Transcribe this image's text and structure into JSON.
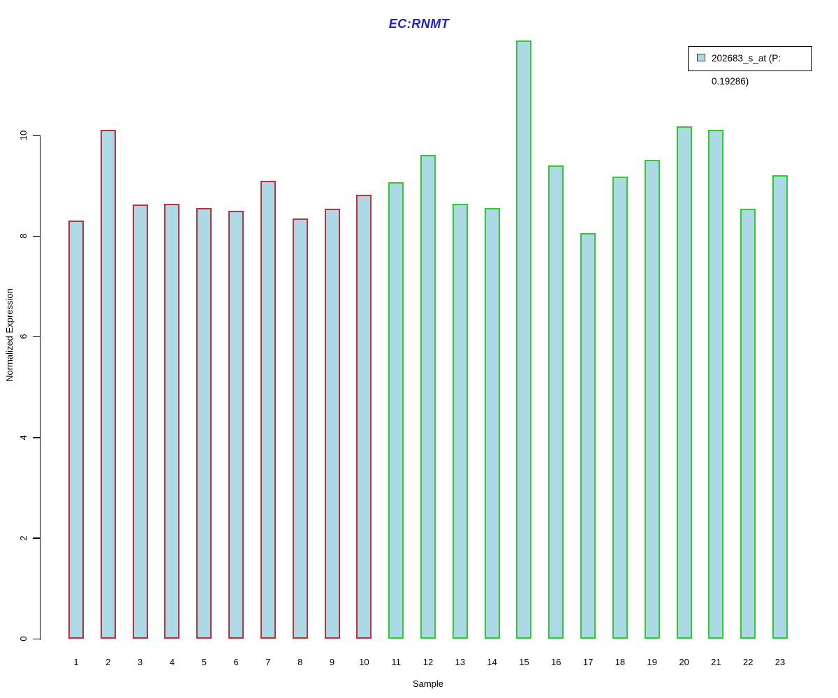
{
  "title": "EC:RNMT",
  "colors": {
    "title_blue": "#2121C8",
    "bar_fill": "#ADD8E6",
    "border_red": "#C0303A",
    "border_green": "#2FCC2F",
    "axis_black": "#000000",
    "legend_swatch_border": "#444444"
  },
  "legend": {
    "label": "202683_s_at (P: 0.19286)"
  },
  "axes": {
    "xlabel": "Sample",
    "ylabel": "Normalized Expression"
  },
  "chart_data": {
    "type": "bar",
    "title": "EC:RNMT",
    "xlabel": "Sample",
    "ylabel": "Normalized Expression",
    "categories": [
      "1",
      "2",
      "3",
      "4",
      "5",
      "6",
      "7",
      "8",
      "9",
      "10",
      "11",
      "12",
      "13",
      "14",
      "15",
      "16",
      "17",
      "18",
      "19",
      "20",
      "21",
      "22",
      "23"
    ],
    "values": [
      8.31,
      10.11,
      8.63,
      8.64,
      8.56,
      8.5,
      9.1,
      8.35,
      8.54,
      8.82,
      9.07,
      9.61,
      8.64,
      8.56,
      11.88,
      9.4,
      8.06,
      9.18,
      9.51,
      10.18,
      10.11,
      8.54,
      9.21
    ],
    "bar_border_colors": [
      "#C0303A",
      "#C0303A",
      "#C0303A",
      "#C0303A",
      "#C0303A",
      "#C0303A",
      "#C0303A",
      "#C0303A",
      "#C0303A",
      "#C0303A",
      "#2FCC2F",
      "#2FCC2F",
      "#2FCC2F",
      "#2FCC2F",
      "#2FCC2F",
      "#2FCC2F",
      "#2FCC2F",
      "#2FCC2F",
      "#2FCC2F",
      "#2FCC2F",
      "#2FCC2F",
      "#2FCC2F",
      "#2FCC2F"
    ],
    "bar_fill": "#ADD8E6",
    "yticks": [
      0,
      2,
      4,
      6,
      8,
      10
    ],
    "ylim": [
      0,
      12
    ],
    "grid": false,
    "legend_entries": [
      "202683_s_at (P: 0.19286)"
    ],
    "legend_position": "top-right",
    "group_note": "samples 1-10 red outline, samples 11-23 green outline"
  }
}
